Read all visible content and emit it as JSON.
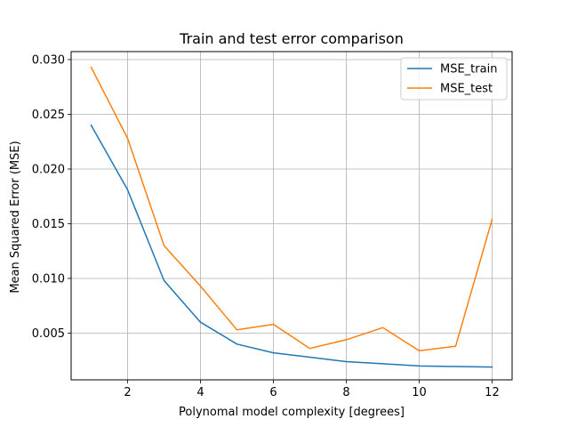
{
  "chart_data": {
    "type": "line",
    "title": "Train and test error comparison",
    "xlabel": "Polynomal model complexity [degrees]",
    "ylabel": "Mean Squared Error (MSE)",
    "xlim": [
      0.45,
      12.55
    ],
    "ylim": [
      0.00073,
      0.03073
    ],
    "xticks": [
      2,
      4,
      6,
      8,
      10,
      12
    ],
    "yticks": [
      0.005,
      0.01,
      0.015,
      0.02,
      0.025,
      0.03
    ],
    "ytick_labels": [
      "0.005",
      "0.010",
      "0.015",
      "0.020",
      "0.025",
      "0.030"
    ],
    "grid": true,
    "legend_position": "top-right",
    "x": [
      1,
      2,
      3,
      4,
      5,
      6,
      7,
      8,
      9,
      10,
      11,
      12
    ],
    "series": [
      {
        "name": "MSE_train",
        "color": "#1f77b4",
        "values": [
          0.024,
          0.0181,
          0.0098,
          0.006,
          0.004,
          0.0032,
          0.0028,
          0.0024,
          0.0022,
          0.002,
          0.00195,
          0.0019
        ]
      },
      {
        "name": "MSE_test",
        "color": "#ff7f0e",
        "values": [
          0.0293,
          0.0228,
          0.013,
          0.0093,
          0.0053,
          0.0058,
          0.0036,
          0.0044,
          0.0055,
          0.0034,
          0.0038,
          0.0154
        ]
      }
    ]
  }
}
